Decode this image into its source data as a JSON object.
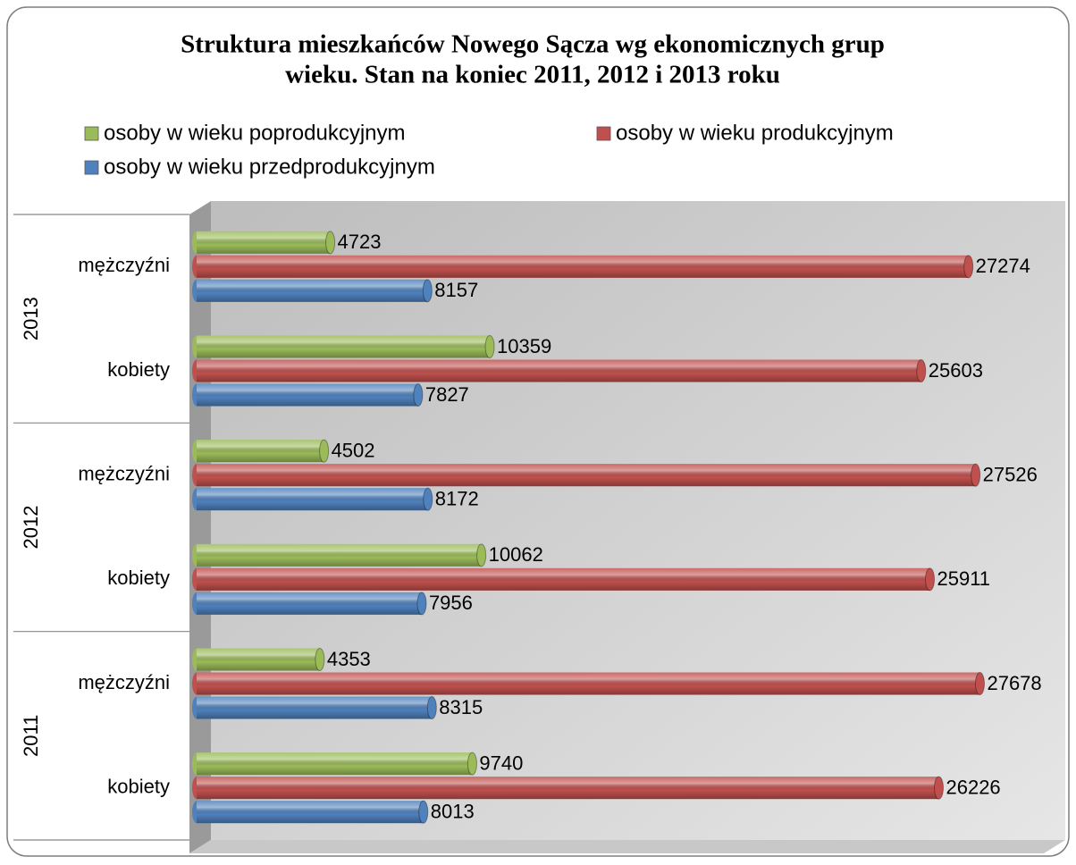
{
  "chart_data": {
    "type": "bar",
    "title": [
      "Struktura mieszkańców Nowego Sącza wg ekonomicznych grup",
      "wieku.  Stan na koniec 2011, 2012 i 2013 roku"
    ],
    "groups": [
      "2011",
      "2012",
      "2013"
    ],
    "categories": [
      "kobiety",
      "mężczyźni",
      "kobiety",
      "mężczyźni",
      "kobiety",
      "mężczyźni"
    ],
    "series": [
      {
        "name": "osoby w wieku poprodukcyjnym",
        "color": "#9bbb59",
        "values": [
          9740,
          4353,
          10062,
          4502,
          10359,
          4723
        ]
      },
      {
        "name": "osoby w wieku produkcyjnym",
        "color": "#c0504d",
        "values": [
          26226,
          27678,
          25911,
          27526,
          25603,
          27274
        ]
      },
      {
        "name": "osoby w wieku przedprodukcyjnym",
        "color": "#4f81bd",
        "values": [
          8013,
          8315,
          7956,
          8172,
          7827,
          8157
        ]
      }
    ],
    "xlim": [
      0,
      30000
    ]
  }
}
